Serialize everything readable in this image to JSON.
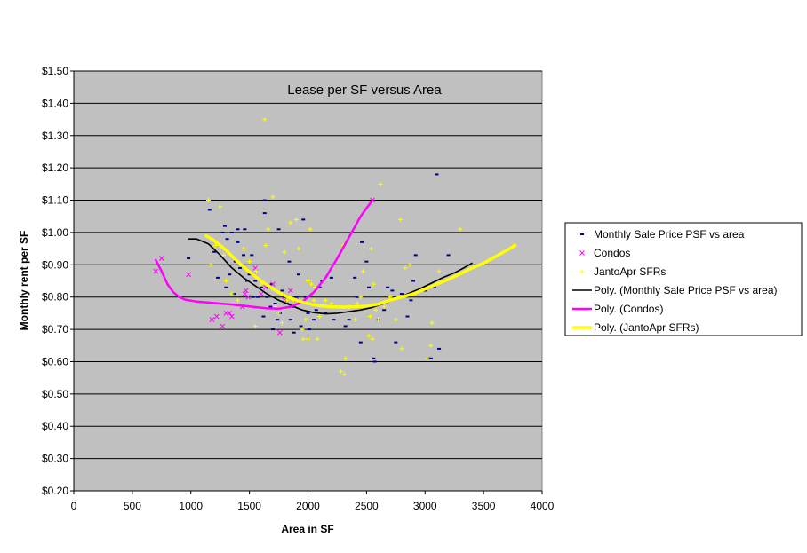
{
  "chart_data": {
    "type": "scatter",
    "title": "Lease per SF versus Area",
    "xlabel": "Area in SF",
    "ylabel": "Monthly rent per SF",
    "xlim": [
      0,
      4000
    ],
    "ylim": [
      0.2,
      1.5
    ],
    "x_ticks": [
      "0",
      "500",
      "1000",
      "1500",
      "2000",
      "2500",
      "3000",
      "3500",
      "4000"
    ],
    "y_ticks": [
      "$0.20",
      "$0.30",
      "$0.40",
      "$0.50",
      "$0.60",
      "$0.70",
      "$0.80",
      "$0.90",
      "$1.00",
      "$1.10",
      "$1.20",
      "$1.30",
      "$1.40",
      "$1.50"
    ],
    "grid": "horizontal",
    "plot_background": "#C0C0C0",
    "legend_position": "right",
    "series": [
      {
        "name": "Monthly Sale Price PSF vs area",
        "marker": "dash",
        "color": "#000080",
        "points": [
          [
            980,
            0.92
          ],
          [
            1160,
            1.07
          ],
          [
            1200,
            0.94
          ],
          [
            1230,
            0.86
          ],
          [
            1270,
            1.0
          ],
          [
            1290,
            1.02
          ],
          [
            1300,
            0.83
          ],
          [
            1310,
            0.98
          ],
          [
            1330,
            0.87
          ],
          [
            1350,
            1.0
          ],
          [
            1370,
            0.81
          ],
          [
            1380,
            0.91
          ],
          [
            1400,
            1.01
          ],
          [
            1400,
            0.97
          ],
          [
            1420,
            0.89
          ],
          [
            1450,
            0.93
          ],
          [
            1460,
            1.01
          ],
          [
            1480,
            0.85
          ],
          [
            1500,
            0.87
          ],
          [
            1520,
            0.93
          ],
          [
            1530,
            0.8
          ],
          [
            1550,
            0.85
          ],
          [
            1570,
            0.8
          ],
          [
            1600,
            0.83
          ],
          [
            1620,
            0.74
          ],
          [
            1630,
            1.1
          ],
          [
            1630,
            1.06
          ],
          [
            1650,
            0.8
          ],
          [
            1660,
            0.83
          ],
          [
            1680,
            0.77
          ],
          [
            1690,
            0.84
          ],
          [
            1700,
            0.7
          ],
          [
            1720,
            0.78
          ],
          [
            1740,
            0.73
          ],
          [
            1750,
            1.01
          ],
          [
            1760,
            0.75
          ],
          [
            1780,
            0.82
          ],
          [
            1800,
            0.8
          ],
          [
            1820,
            0.78
          ],
          [
            1840,
            0.91
          ],
          [
            1850,
            0.73
          ],
          [
            1870,
            0.77
          ],
          [
            1880,
            0.69
          ],
          [
            1900,
            0.8
          ],
          [
            1920,
            0.87
          ],
          [
            1940,
            0.71
          ],
          [
            1960,
            1.04
          ],
          [
            1980,
            0.8
          ],
          [
            2000,
            0.75
          ],
          [
            2010,
            0.7
          ],
          [
            2030,
            0.78
          ],
          [
            2050,
            0.73
          ],
          [
            2070,
            0.76
          ],
          [
            2100,
            0.83
          ],
          [
            2120,
            0.85
          ],
          [
            2150,
            0.75
          ],
          [
            2200,
            0.86
          ],
          [
            2220,
            0.73
          ],
          [
            2300,
            0.77
          ],
          [
            2320,
            0.71
          ],
          [
            2350,
            0.73
          ],
          [
            2400,
            0.86
          ],
          [
            2420,
            0.8
          ],
          [
            2450,
            0.66
          ],
          [
            2460,
            0.97
          ],
          [
            2500,
            0.91
          ],
          [
            2520,
            0.83
          ],
          [
            2560,
            0.61
          ],
          [
            2570,
            0.6
          ],
          [
            2600,
            0.73
          ],
          [
            2650,
            0.76
          ],
          [
            2680,
            0.83
          ],
          [
            2720,
            0.82
          ],
          [
            2750,
            0.66
          ],
          [
            2800,
            0.81
          ],
          [
            2850,
            0.74
          ],
          [
            2880,
            0.79
          ],
          [
            2900,
            0.85
          ],
          [
            2920,
            0.93
          ],
          [
            3000,
            0.82
          ],
          [
            3030,
            0.61
          ],
          [
            3050,
            0.61
          ],
          [
            3080,
            0.83
          ],
          [
            3100,
            1.18
          ],
          [
            3120,
            0.64
          ],
          [
            3200,
            0.93
          ]
        ]
      },
      {
        "name": "Condos",
        "marker": "x",
        "color": "#FF00FF",
        "points": [
          [
            700,
            0.88
          ],
          [
            750,
            0.92
          ],
          [
            980,
            0.87
          ],
          [
            1180,
            0.73
          ],
          [
            1220,
            0.74
          ],
          [
            1270,
            0.71
          ],
          [
            1300,
            0.75
          ],
          [
            1330,
            0.75
          ],
          [
            1350,
            0.74
          ],
          [
            1440,
            0.77
          ],
          [
            1460,
            0.81
          ],
          [
            1470,
            0.82
          ],
          [
            1490,
            0.8
          ],
          [
            1550,
            0.89
          ],
          [
            1600,
            0.81
          ],
          [
            1640,
            0.83
          ],
          [
            1700,
            0.84
          ],
          [
            1760,
            0.69
          ],
          [
            1800,
            0.79
          ],
          [
            1850,
            0.82
          ],
          [
            1900,
            0.79
          ],
          [
            2550,
            1.1
          ]
        ]
      },
      {
        "name": "JantoApr SFRs",
        "marker": "plus",
        "color": "#FFFF00",
        "points": [
          [
            1150,
            1.1
          ],
          [
            1170,
            0.9
          ],
          [
            1210,
            0.96
          ],
          [
            1250,
            1.08
          ],
          [
            1280,
            0.93
          ],
          [
            1300,
            0.85
          ],
          [
            1350,
            0.81
          ],
          [
            1400,
            0.79
          ],
          [
            1450,
            0.95
          ],
          [
            1500,
            0.91
          ],
          [
            1550,
            0.71
          ],
          [
            1560,
            0.88
          ],
          [
            1600,
            0.84
          ],
          [
            1630,
            1.35
          ],
          [
            1640,
            0.96
          ],
          [
            1660,
            1.01
          ],
          [
            1700,
            1.11
          ],
          [
            1720,
            0.77
          ],
          [
            1750,
            0.75
          ],
          [
            1780,
            0.72
          ],
          [
            1800,
            0.94
          ],
          [
            1820,
            0.79
          ],
          [
            1850,
            1.03
          ],
          [
            1880,
            0.79
          ],
          [
            1900,
            1.04
          ],
          [
            1920,
            0.95
          ],
          [
            1950,
            0.7
          ],
          [
            1960,
            0.67
          ],
          [
            1980,
            0.73
          ],
          [
            2000,
            0.67
          ],
          [
            2000,
            0.85
          ],
          [
            2020,
            1.01
          ],
          [
            2030,
            0.84
          ],
          [
            2050,
            0.79
          ],
          [
            2060,
            0.83
          ],
          [
            2080,
            0.67
          ],
          [
            2100,
            0.74
          ],
          [
            2150,
            0.79
          ],
          [
            2200,
            0.78
          ],
          [
            2250,
            0.75
          ],
          [
            2280,
            0.57
          ],
          [
            2300,
            0.96
          ],
          [
            2310,
            0.56
          ],
          [
            2320,
            0.61
          ],
          [
            2350,
            0.77
          ],
          [
            2400,
            0.73
          ],
          [
            2420,
            0.78
          ],
          [
            2450,
            0.8
          ],
          [
            2470,
            0.88
          ],
          [
            2520,
            0.68
          ],
          [
            2530,
            0.74
          ],
          [
            2540,
            0.95
          ],
          [
            2550,
            0.67
          ],
          [
            2560,
            0.84
          ],
          [
            2580,
            0.76
          ],
          [
            2600,
            0.73
          ],
          [
            2620,
            1.15
          ],
          [
            2650,
            0.77
          ],
          [
            2700,
            0.8
          ],
          [
            2750,
            0.73
          ],
          [
            2790,
            1.04
          ],
          [
            2800,
            0.64
          ],
          [
            2830,
            0.89
          ],
          [
            2870,
            0.9
          ],
          [
            3020,
            0.61
          ],
          [
            3050,
            0.65
          ],
          [
            3060,
            0.72
          ],
          [
            3120,
            0.88
          ],
          [
            3300,
            1.01
          ],
          [
            3760,
            0.96
          ]
        ]
      },
      {
        "name": "Poly. (Monthly Sale Price PSF vs area)",
        "marker": "line",
        "color": "#000000",
        "points": [
          [
            980,
            0.98
          ],
          [
            1050,
            0.98
          ],
          [
            1150,
            0.965
          ],
          [
            1250,
            0.93
          ],
          [
            1350,
            0.89
          ],
          [
            1450,
            0.86
          ],
          [
            1550,
            0.835
          ],
          [
            1650,
            0.81
          ],
          [
            1750,
            0.79
          ],
          [
            1850,
            0.775
          ],
          [
            1950,
            0.76
          ],
          [
            2050,
            0.752
          ],
          [
            2150,
            0.748
          ],
          [
            2250,
            0.75
          ],
          [
            2350,
            0.755
          ],
          [
            2450,
            0.76
          ],
          [
            2550,
            0.768
          ],
          [
            2650,
            0.78
          ],
          [
            2750,
            0.795
          ],
          [
            2850,
            0.81
          ],
          [
            2950,
            0.825
          ],
          [
            3050,
            0.842
          ],
          [
            3150,
            0.86
          ],
          [
            3250,
            0.875
          ],
          [
            3330,
            0.89
          ],
          [
            3400,
            0.905
          ]
        ]
      },
      {
        "name": "Poly. (Condos)",
        "marker": "line",
        "color": "#FF00FF",
        "points": [
          [
            700,
            0.915
          ],
          [
            750,
            0.88
          ],
          [
            800,
            0.84
          ],
          [
            850,
            0.815
          ],
          [
            900,
            0.8
          ],
          [
            950,
            0.792
          ],
          [
            1050,
            0.786
          ],
          [
            1150,
            0.783
          ],
          [
            1250,
            0.78
          ],
          [
            1350,
            0.777
          ],
          [
            1450,
            0.773
          ],
          [
            1550,
            0.769
          ],
          [
            1650,
            0.765
          ],
          [
            1750,
            0.764
          ],
          [
            1850,
            0.77
          ],
          [
            1950,
            0.785
          ],
          [
            2050,
            0.815
          ],
          [
            2150,
            0.86
          ],
          [
            2250,
            0.92
          ],
          [
            2350,
            0.985
          ],
          [
            2450,
            1.05
          ],
          [
            2550,
            1.1
          ]
        ]
      },
      {
        "name": "Poly. (JantoApr SFRs)",
        "marker": "line",
        "color": "#FFFF00",
        "points": [
          [
            1130,
            0.99
          ],
          [
            1200,
            0.975
          ],
          [
            1300,
            0.945
          ],
          [
            1400,
            0.91
          ],
          [
            1500,
            0.878
          ],
          [
            1600,
            0.85
          ],
          [
            1700,
            0.825
          ],
          [
            1800,
            0.805
          ],
          [
            1900,
            0.79
          ],
          [
            2000,
            0.78
          ],
          [
            2100,
            0.773
          ],
          [
            2200,
            0.77
          ],
          [
            2300,
            0.769
          ],
          [
            2400,
            0.77
          ],
          [
            2500,
            0.772
          ],
          [
            2600,
            0.778
          ],
          [
            2700,
            0.79
          ],
          [
            2800,
            0.8
          ],
          [
            2900,
            0.81
          ],
          [
            3000,
            0.825
          ],
          [
            3100,
            0.84
          ],
          [
            3200,
            0.855
          ],
          [
            3300,
            0.872
          ],
          [
            3400,
            0.89
          ],
          [
            3500,
            0.905
          ],
          [
            3600,
            0.925
          ],
          [
            3700,
            0.945
          ],
          [
            3770,
            0.96
          ]
        ]
      }
    ]
  }
}
